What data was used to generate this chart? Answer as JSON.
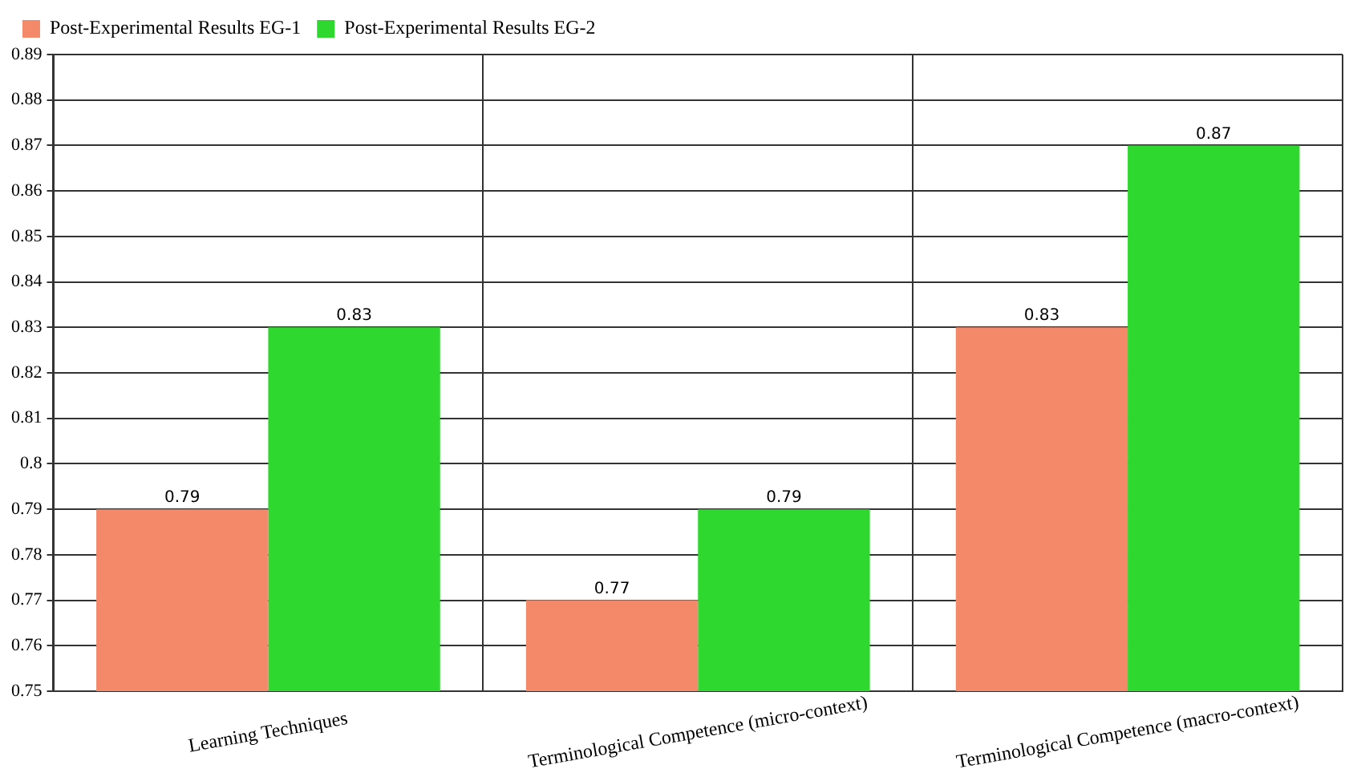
{
  "chart_data": {
    "type": "bar",
    "categories": [
      "Learning Techniques",
      "Terminological Competence (micro-context)",
      "Terminological Competence (macro-context)"
    ],
    "series": [
      {
        "name": "Post-Experimental Results EG-1",
        "color": "#f4896a",
        "values": [
          0.79,
          0.77,
          0.83
        ]
      },
      {
        "name": "Post-Experimental Results EG-2",
        "color": "#2fd82f",
        "values": [
          0.83,
          0.79,
          0.87
        ]
      }
    ],
    "ylim": [
      0.75,
      0.89
    ],
    "yticks": [
      0.75,
      0.76,
      0.77,
      0.78,
      0.79,
      0.8,
      0.81,
      0.82,
      0.83,
      0.84,
      0.85,
      0.86,
      0.87,
      0.88,
      0.89
    ],
    "grid": true,
    "legend": "top left",
    "data_labels": true
  }
}
